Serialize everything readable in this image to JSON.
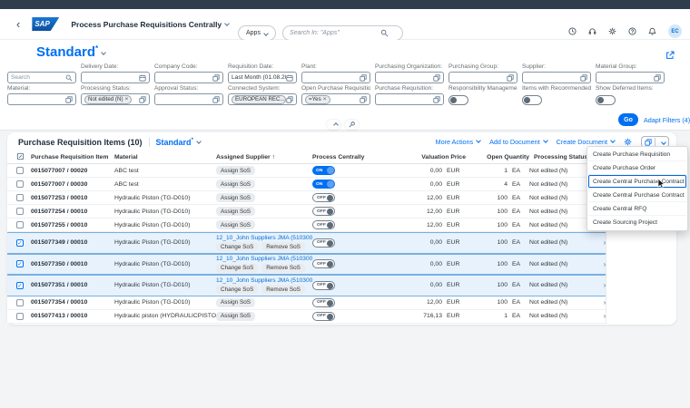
{
  "colors": {
    "accent": "#0070f2",
    "brand_blue": "#0a6ed1",
    "selected_row_bg": "#e7f2fc",
    "top_strip": "#2e3c4d"
  },
  "shell": {
    "back_icon": "‹",
    "logo_text": "SAP",
    "app_title": "Process Purchase Requisitions Centrally",
    "apps_label": "Apps",
    "search_placeholder": "Search In: \"Apps\"",
    "icons": [
      "clock-icon",
      "headset-icon",
      "settings-icon",
      "help-icon",
      "notifications-icon"
    ],
    "avatar_initials": "EC"
  },
  "filter_bar": {
    "variant_title": "Standard",
    "variant_dirty_marker": "*",
    "go_label": "Go",
    "adapt_filters_label": "Adapt Filters (4)",
    "fields_row1": [
      {
        "type": "search",
        "placeholder": "Search"
      },
      {
        "type": "input",
        "label": "Delivery Date:",
        "value": "",
        "icon": "calendar"
      },
      {
        "type": "input",
        "label": "Company Code:",
        "value": "",
        "icon": "valuehelp"
      },
      {
        "type": "input",
        "label": "Requisition Date:",
        "value": "Last Month (01.08.202...",
        "icon": "calendar"
      },
      {
        "type": "input",
        "label": "Plant:",
        "value": "",
        "icon": "valuehelp"
      },
      {
        "type": "input",
        "label": "Purchasing Organization:",
        "value": "",
        "icon": "valuehelp"
      },
      {
        "type": "input",
        "label": "Purchasing Group:",
        "value": "",
        "icon": "valuehelp"
      },
      {
        "type": "input",
        "label": "Supplier:",
        "value": "",
        "icon": "valuehelp"
      },
      {
        "type": "input",
        "label": "Material Group:",
        "value": "",
        "icon": "valuehelp"
      }
    ],
    "fields_row2": [
      {
        "type": "input",
        "label": "Material:",
        "value": "",
        "icon": "valuehelp"
      },
      {
        "type": "input",
        "label": "Processing Status:",
        "token": "Not edited (N)",
        "icon": "valuehelp"
      },
      {
        "type": "input",
        "label": "Approval Status:",
        "value": "",
        "icon": "valuehelp"
      },
      {
        "type": "input",
        "label": "Connected System:",
        "token": "EUROPEAN REC...",
        "icon": "valuehelp"
      },
      {
        "type": "input",
        "label": "Open Purchase Requisitions:",
        "token": "=Yes",
        "icon": "valuehelp"
      },
      {
        "type": "input",
        "label": "Purchase Requisition:",
        "value": "",
        "icon": "valuehelp"
      },
      {
        "type": "toggle",
        "label": "Responsibility Management:",
        "on": false
      },
      {
        "type": "toggle",
        "label": "Items with Recommended Mat...",
        "on": false
      },
      {
        "type": "toggle",
        "label": "Show Deferred Items:",
        "on": false
      }
    ]
  },
  "table": {
    "title": "Purchase Requisition Items (10)",
    "variant": "Standard",
    "variant_dirty_marker": "*",
    "toolbar": {
      "more_actions": "More Actions",
      "add_to_document": "Add to Document",
      "create_document": "Create Document"
    },
    "columns": {
      "item": "Purchase Requisition Item",
      "material": "Material",
      "supplier": "Assigned Supplier",
      "sort_icon": "↑",
      "process": "Process Centrally",
      "price": "Valuation Price",
      "qty": "Open Quantity",
      "status": "Processing Status"
    },
    "toggle_on_label": "ON",
    "toggle_off_label": "OFF",
    "row_chevron": "›",
    "rows": [
      {
        "item": "0015077007 / 00020",
        "material": "ABC test",
        "assign": "Assign SoS",
        "process_on": true,
        "price": "0,00",
        "currency": "EUR",
        "qty": "1",
        "unit": "EA",
        "status": "Not edited (N)",
        "selected": false
      },
      {
        "item": "0015077007 / 00030",
        "material": "ABC test",
        "assign": "Assign SoS",
        "process_on": true,
        "price": "0,00",
        "currency": "EUR",
        "qty": "4",
        "unit": "EA",
        "status": "Not edited (N)",
        "selected": false
      },
      {
        "item": "0015077253 / 00010",
        "material": "Hydraulic Piston (TG-D010)",
        "assign": "Assign SoS",
        "process_on": false,
        "price": "12,00",
        "currency": "EUR",
        "qty": "100",
        "unit": "EA",
        "status": "Not edited (N)",
        "selected": false
      },
      {
        "item": "0015077254 / 00010",
        "material": "Hydraulic Piston (TG-D010)",
        "assign": "Assign SoS",
        "process_on": false,
        "price": "12,00",
        "currency": "EUR",
        "qty": "100",
        "unit": "EA",
        "status": "Not edited (N)",
        "selected": false
      },
      {
        "item": "0015077255 / 00010",
        "material": "Hydraulic Piston (TG-D010)",
        "assign": "Assign SoS",
        "process_on": false,
        "price": "12,00",
        "currency": "EUR",
        "qty": "100",
        "unit": "EA",
        "status": "Not edited (N)",
        "selected": false
      },
      {
        "item": "0015077349 / 00010",
        "material": "Hydraulic Piston (TG-D010)",
        "supplier_link": "12_10_John Suppliers JMA (51030001)",
        "change_label": "Change SoS",
        "remove_label": "Remove SoS",
        "process_on": false,
        "price": "0,00",
        "currency": "EUR",
        "qty": "100",
        "unit": "EA",
        "status": "Not edited (N)",
        "selected": true
      },
      {
        "item": "0015077350 / 00010",
        "material": "Hydraulic Piston (TG-D010)",
        "supplier_link": "12_10_John Suppliers JMA (51030001)",
        "change_label": "Change SoS",
        "remove_label": "Remove SoS",
        "process_on": false,
        "price": "0,00",
        "currency": "EUR",
        "qty": "100",
        "unit": "EA",
        "status": "Not edited (N)",
        "selected": true
      },
      {
        "item": "0015077351 / 00010",
        "material": "Hydraulic Piston (TG-D010)",
        "supplier_link": "12_10_John Suppliers JMA (51030001)",
        "change_label": "Change SoS",
        "remove_label": "Remove SoS",
        "process_on": false,
        "price": "0,00",
        "currency": "EUR",
        "qty": "100",
        "unit": "EA",
        "status": "Not edited (N)",
        "selected": true
      },
      {
        "item": "0015077354 / 00010",
        "material": "Hydraulic Piston (TG-D010)",
        "assign": "Assign SoS",
        "process_on": false,
        "price": "12,00",
        "currency": "EUR",
        "qty": "100",
        "unit": "EA",
        "status": "Not edited (N)",
        "selected": false
      },
      {
        "item": "0015077413 / 00010",
        "material": "Hydraulic piston (HYDRAULICPISTON)",
        "assign": "Assign SoS",
        "process_on": false,
        "price": "716,13",
        "currency": "EUR",
        "qty": "1",
        "unit": "EA",
        "status": "Not edited (N)",
        "selected": false
      }
    ]
  },
  "context_menu": {
    "items": [
      "Create Purchase Requisition",
      "Create Purchase Order",
      "Create Central Purchase Contract",
      "Create Central Purchase Contract Hierarchy",
      "Create Central RFQ",
      "Create Sourcing Project"
    ],
    "highlighted": "Create Central Purchase Contract",
    "highlighted_index": 2
  }
}
